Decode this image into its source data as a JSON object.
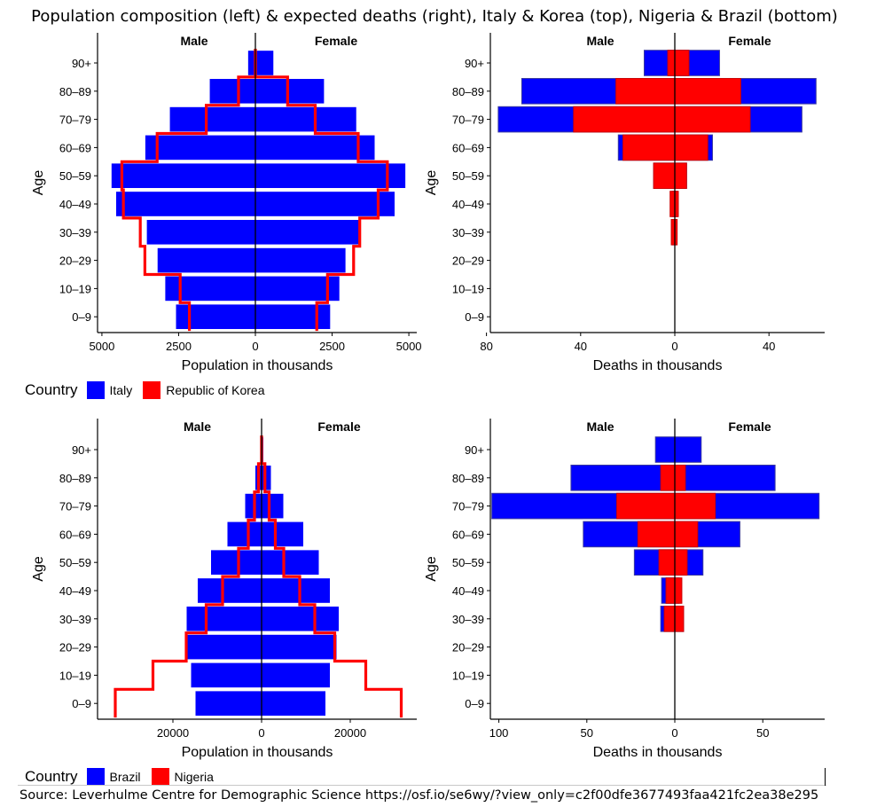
{
  "title": "Population composition (left) & expected deaths (right), Italy & Korea (top), Nigeria & Brazil (bottom)",
  "source": "Source: Leverhulme Centre for Demographic Science https://osf.io/se6wy/?view_only=c2f00dfe3677493faa421fc2ea38e295",
  "colors": {
    "series_a": "#0000FF",
    "series_b": "#FF0000"
  },
  "legends": [
    {
      "title": "Country",
      "items": [
        {
          "label": "Italy",
          "color": "#0000FF"
        },
        {
          "label": "Republic of Korea",
          "color": "#FF0000"
        }
      ]
    },
    {
      "title": "Country",
      "items": [
        {
          "label": "Brazil",
          "color": "#0000FF"
        },
        {
          "label": "Nigeria",
          "color": "#FF0000"
        }
      ]
    }
  ],
  "chart_data": [
    {
      "type": "population-pyramid",
      "panel": "top-left",
      "xlabel": "Population in thousands",
      "ylabel": "Age",
      "left_header": "Male",
      "right_header": "Female",
      "categories": [
        "0–9",
        "10–19",
        "20–29",
        "30–39",
        "40–49",
        "50–59",
        "60–69",
        "70–79",
        "80–89",
        "90+"
      ],
      "xlim": [
        -5200,
        5200
      ],
      "x_ticks": [
        -5000,
        -2500,
        0,
        2500,
        5000
      ],
      "x_tick_labels": [
        "5000",
        "2500",
        "0",
        "2500",
        "5000"
      ],
      "bars": {
        "name": "Italy",
        "male": [
          2600,
          2950,
          3200,
          3550,
          4550,
          4700,
          3600,
          2800,
          1500,
          250
        ],
        "female": [
          2450,
          2750,
          2950,
          3450,
          4550,
          4900,
          3900,
          3300,
          2250,
          600
        ]
      },
      "step_line": {
        "name": "Republic of Korea",
        "male": [
          2150,
          2450,
          3600,
          3750,
          4300,
          4350,
          3200,
          1600,
          550,
          0
        ],
        "female": [
          2000,
          2350,
          3200,
          3400,
          4000,
          4300,
          3350,
          1950,
          1050,
          0
        ]
      }
    },
    {
      "type": "population-pyramid",
      "panel": "top-right",
      "xlabel": "Deaths in thousands",
      "ylabel": "Age",
      "left_header": "Male",
      "right_header": "Female",
      "categories": [
        "0–9",
        "10–19",
        "20–29",
        "30–39",
        "40–49",
        "50–59",
        "60–69",
        "70–79",
        "80–89",
        "90+"
      ],
      "xlim": [
        -80,
        62
      ],
      "x_ticks": [
        -80,
        -40,
        0,
        40
      ],
      "x_tick_labels": [
        "80",
        "40",
        "0",
        "40"
      ],
      "series": [
        {
          "name": "Italy",
          "male": [
            0,
            0,
            0,
            1,
            1,
            9,
            24,
            75,
            65,
            13
          ],
          "female": [
            0,
            0,
            0,
            0.5,
            1,
            5,
            16,
            54,
            60,
            19
          ]
        },
        {
          "name": "Republic of Korea",
          "male": [
            0,
            0,
            0,
            1.5,
            2,
            9,
            22,
            43,
            25,
            3
          ],
          "female": [
            0,
            0,
            0,
            1,
            1.5,
            5,
            14,
            32,
            28,
            6
          ]
        }
      ]
    },
    {
      "type": "population-pyramid",
      "panel": "bottom-left",
      "xlabel": "Population in thousands",
      "ylabel": "Age",
      "left_header": "Male",
      "right_header": "Female",
      "categories": [
        "0–9",
        "10–19",
        "20–29",
        "30–39",
        "40–49",
        "50–59",
        "60–69",
        "70–79",
        "80–89",
        "90+"
      ],
      "xlim": [
        -36000,
        36000
      ],
      "x_ticks": [
        -20000,
        0,
        20000
      ],
      "x_tick_labels": [
        "20000",
        "0",
        "20000"
      ],
      "bars": {
        "name": "Brazil",
        "male": [
          15000,
          16000,
          17000,
          17000,
          14500,
          11500,
          7800,
          3800,
          1500,
          300
        ],
        "female": [
          14500,
          15500,
          17000,
          17500,
          15500,
          13000,
          9500,
          5000,
          2200,
          500
        ]
      },
      "step_line": {
        "name": "Nigeria",
        "male": [
          33000,
          24500,
          17000,
          12500,
          8800,
          5200,
          3000,
          1600,
          700,
          0
        ],
        "female": [
          31500,
          23500,
          16500,
          12000,
          8600,
          5000,
          3100,
          1700,
          750,
          0
        ]
      }
    },
    {
      "type": "population-pyramid",
      "panel": "bottom-right",
      "xlabel": "Deaths in thousands",
      "ylabel": "Age",
      "left_header": "Male",
      "right_header": "Female",
      "categories": [
        "0–9",
        "10–19",
        "20–29",
        "30–39",
        "40–49",
        "50–59",
        "60–69",
        "70–79",
        "80–89",
        "90+"
      ],
      "xlim": [
        -105,
        85
      ],
      "x_ticks": [
        -100,
        -50,
        0,
        50
      ],
      "x_tick_labels": [
        "100",
        "50",
        "0",
        "50"
      ],
      "series": [
        {
          "name": "Brazil",
          "male": [
            0,
            0,
            0,
            8,
            7.5,
            23,
            52,
            104,
            59,
            11
          ],
          "female": [
            0,
            0,
            0,
            5,
            2.5,
            16,
            37,
            82,
            57,
            15
          ]
        },
        {
          "name": "Nigeria",
          "male": [
            0,
            0,
            0,
            6,
            5,
            9,
            21,
            33,
            8,
            0
          ],
          "female": [
            0,
            0,
            0,
            5,
            4,
            7,
            13,
            23,
            6,
            0
          ]
        }
      ]
    }
  ]
}
